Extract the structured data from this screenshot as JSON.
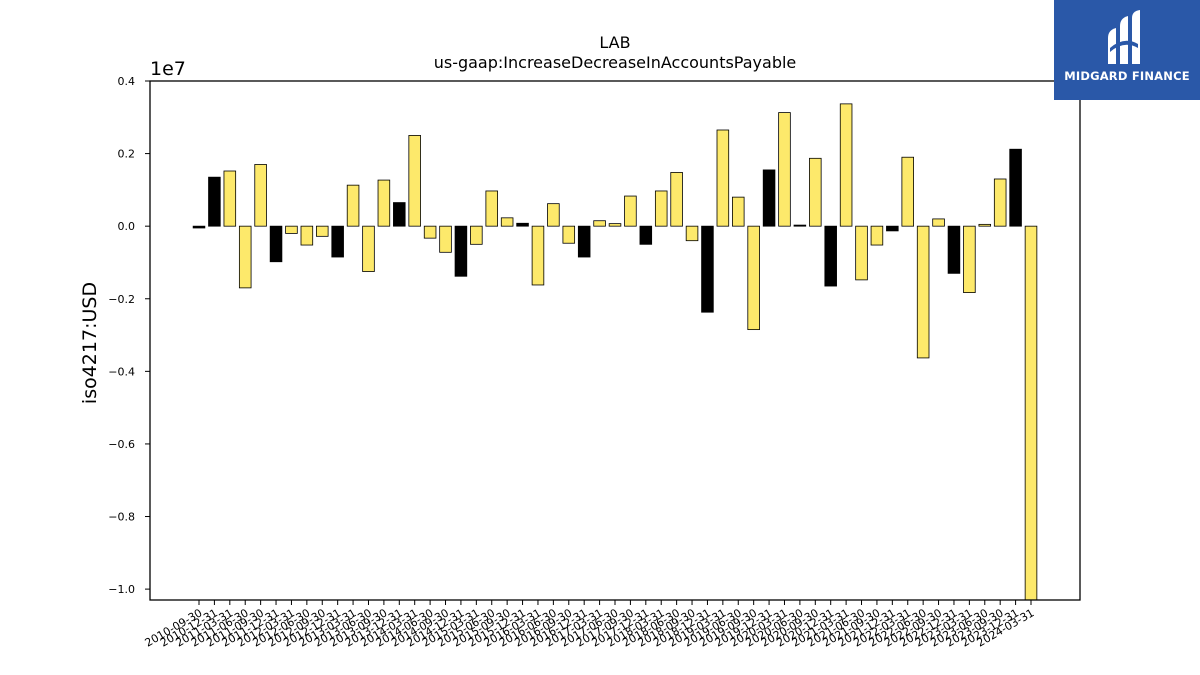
{
  "chart_data": {
    "type": "bar",
    "title": "LAB",
    "subtitle": "us-gaap:IncreaseDecreaseInAccountsPayable",
    "ylabel": "iso4217:USD",
    "xlabel": "",
    "y_offset_label": "1e7",
    "ylim": [
      -10300000,
      4000000
    ],
    "yticks": [
      0.4,
      0.2,
      0.0,
      -0.2,
      -0.4,
      -0.6,
      -0.8,
      -1.0
    ],
    "ytick_labels": [
      "0.4",
      "0.2",
      "0.0",
      "−0.2",
      "−0.4",
      "−0.6",
      "−0.8",
      "−1.0"
    ],
    "tick_label_every": 1,
    "categories": [
      "2010-09-30",
      "2010-12-31",
      "2011-03-31",
      "2011-06-30",
      "2011-09-30",
      "2011-12-31",
      "2012-03-31",
      "2012-06-30",
      "2012-09-30",
      "2012-12-31",
      "2013-03-31",
      "2013-06-30",
      "2013-09-30",
      "2013-12-31",
      "2014-03-31",
      "2014-06-30",
      "2014-09-30",
      "2014-12-31",
      "2015-03-31",
      "2015-06-30",
      "2015-09-30",
      "2015-12-31",
      "2016-03-31",
      "2016-06-30",
      "2016-09-30",
      "2016-12-31",
      "2017-03-31",
      "2017-06-30",
      "2017-09-30",
      "2017-12-31",
      "2018-03-31",
      "2018-06-30",
      "2018-09-30",
      "2018-12-31",
      "2019-03-31",
      "2019-06-30",
      "2019-09-30",
      "2019-12-31",
      "2020-03-31",
      "2020-06-30",
      "2020-09-30",
      "2020-12-31",
      "2021-03-31",
      "2021-06-30",
      "2021-09-30",
      "2021-12-31",
      "2022-03-31",
      "2022-06-30",
      "2022-09-30",
      "2022-12-31",
      "2023-03-31",
      "2023-06-30",
      "2023-09-30",
      "2023-12-31",
      "2024-03-31"
    ],
    "values": [
      -50000,
      1350000,
      1520000,
      -1700000,
      1700000,
      -980000,
      -200000,
      -520000,
      -280000,
      -850000,
      1130000,
      -1250000,
      1270000,
      650000,
      2500000,
      -330000,
      -720000,
      -1380000,
      -500000,
      970000,
      230000,
      80000,
      -1620000,
      620000,
      -470000,
      -850000,
      150000,
      70000,
      830000,
      -500000,
      970000,
      1480000,
      -400000,
      -2370000,
      2650000,
      800000,
      -2850000,
      1550000,
      3130000,
      30000,
      1870000,
      -1650000,
      3370000,
      -1480000,
      -520000,
      -130000,
      1900000,
      -3630000,
      200000,
      -1300000,
      -1830000,
      50000,
      1300000,
      2120000,
      -10350000
    ],
    "bar_colors": [
      "#000000",
      "#000000",
      "#fde96b",
      "#fde96b",
      "#fde96b",
      "#000000",
      "#fde96b",
      "#fde96b",
      "#fde96b",
      "#000000",
      "#fde96b",
      "#fde96b",
      "#fde96b",
      "#000000",
      "#fde96b",
      "#fde96b",
      "#fde96b",
      "#000000",
      "#fde96b",
      "#fde96b",
      "#fde96b",
      "#000000",
      "#fde96b",
      "#fde96b",
      "#fde96b",
      "#000000",
      "#fde96b",
      "#fde96b",
      "#fde96b",
      "#000000",
      "#fde96b",
      "#fde96b",
      "#fde96b",
      "#000000",
      "#fde96b",
      "#fde96b",
      "#fde96b",
      "#000000",
      "#fde96b",
      "#000000",
      "#fde96b",
      "#000000",
      "#fde96b",
      "#fde96b",
      "#fde96b",
      "#000000",
      "#fde96b",
      "#fde96b",
      "#fde96b",
      "#000000",
      "#fde96b",
      "#fde96b",
      "#fde96b",
      "#000000",
      "#fde96b"
    ],
    "grid": false,
    "legend": "none"
  },
  "logo": {
    "text": "MIDGARD FINANCE",
    "background": "#2a58a8"
  }
}
